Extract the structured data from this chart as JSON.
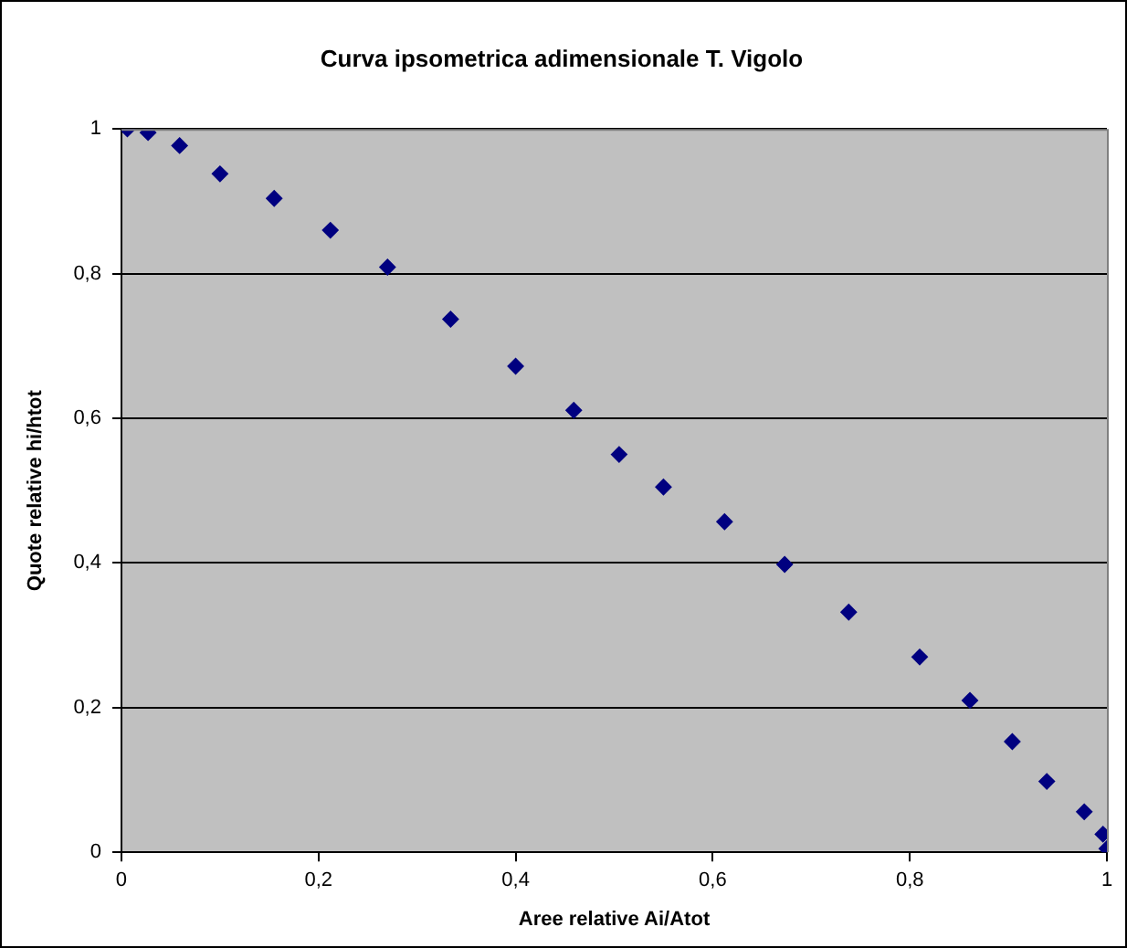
{
  "chart_data": {
    "type": "scatter",
    "title": "Curva ipsometrica adimensionale T. Vigolo",
    "xlabel": "Aree relative Ai/Atot",
    "ylabel": "Quote relative hi/htot",
    "x": [
      0.006,
      0.027,
      0.059,
      0.1,
      0.155,
      0.212,
      0.27,
      0.334,
      0.4,
      0.459,
      0.505,
      0.55,
      0.612,
      0.673,
      0.738,
      0.81,
      0.861,
      0.904,
      0.939,
      0.977,
      0.996,
      1.0
    ],
    "series": [
      {
        "color": "#000080",
        "values": [
          1.0,
          0.995,
          0.977,
          0.938,
          0.904,
          0.86,
          0.809,
          0.737,
          0.672,
          0.611,
          0.55,
          0.505,
          0.457,
          0.398,
          0.332,
          0.27,
          0.21,
          0.153,
          0.098,
          0.056,
          0.025,
          0.005
        ]
      }
    ],
    "xlim": [
      0,
      1
    ],
    "ylim": [
      0,
      1
    ],
    "xticks": [
      0,
      {
        "value": 0.2,
        "label": "0,2"
      },
      {
        "value": 0.4,
        "label": "0,4"
      },
      {
        "value": 0.6,
        "label": "0,6"
      },
      {
        "value": 0.8,
        "label": "0,8"
      },
      1
    ],
    "yticks": [
      0,
      {
        "value": 0.2,
        "label": "0,2"
      },
      {
        "value": 0.4,
        "label": "0,4"
      },
      {
        "value": 0.6,
        "label": "0,6"
      },
      {
        "value": 0.8,
        "label": "0,8"
      },
      1
    ],
    "grid": "y",
    "legend": false,
    "marker": "diamond"
  }
}
